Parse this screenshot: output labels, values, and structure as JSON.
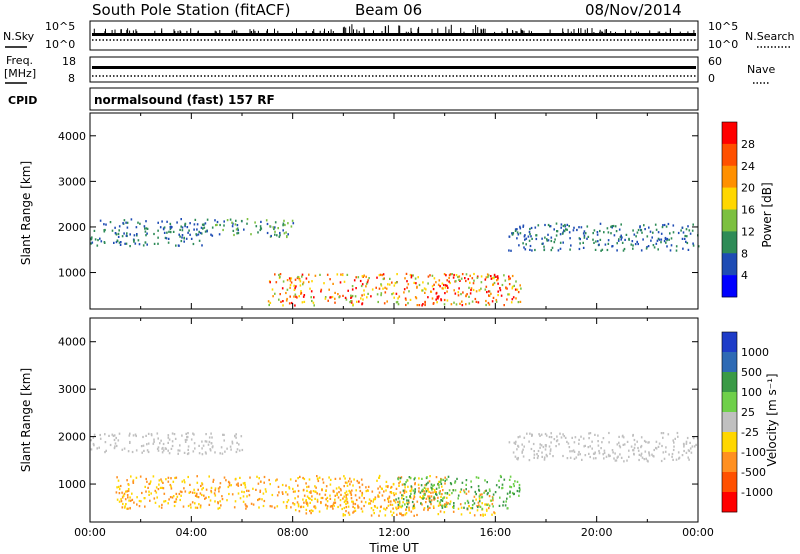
{
  "header": {
    "station": "South Pole Station (fitACF)",
    "beam": "Beam 06",
    "date": "08/Nov/2014"
  },
  "noise_panel": {
    "left_label": "N.Sky",
    "right_label": "N.Search",
    "ticks_left": [
      "10^5",
      "10^0"
    ],
    "ticks_right": [
      "10^5",
      "10^0"
    ]
  },
  "freq_panel": {
    "left_label_line1": "Freq.",
    "left_label_line2": "[MHz]",
    "right_label": "Nave",
    "ticks_left": [
      "18",
      "8"
    ],
    "ticks_right": [
      "60",
      "0"
    ]
  },
  "cpid_panel": {
    "label": "CPID",
    "text": "normalsound (fast) 157 RF"
  },
  "chart_data": [
    {
      "type": "heatmap",
      "title": "",
      "xlabel": "",
      "ylabel": "Slant Range [km]",
      "xlim": [
        0,
        24
      ],
      "ylim": [
        200,
        4500
      ],
      "yticks": [
        1000,
        2000,
        3000,
        4000
      ],
      "colorbar": {
        "label": "Power [dB]",
        "ticks": [
          "28",
          "24",
          "20",
          "16",
          "12",
          "8",
          "4"
        ],
        "colors": [
          "#0000ff",
          "#1e4cb4",
          "#2e8b57",
          "#7cc040",
          "#ffd700",
          "#ff9000",
          "#ff5000",
          "#ff0000"
        ]
      },
      "bands": [
        {
          "t": [
            0,
            4.5
          ],
          "range": [
            1600,
            2200
          ],
          "level": "8-12"
        },
        {
          "t": [
            4.5,
            8
          ],
          "range": [
            1800,
            2200
          ],
          "level": "8-16"
        },
        {
          "t": [
            16.5,
            24
          ],
          "range": [
            1500,
            2100
          ],
          "level": "8-12"
        },
        {
          "t": [
            7,
            17
          ],
          "range": [
            300,
            1000
          ],
          "level": "16-28"
        },
        {
          "t": [
            13.5,
            14
          ],
          "range": [
            300,
            600
          ],
          "level": "28"
        },
        {
          "t": [
            15.8,
            16.2
          ],
          "range": [
            600,
            1000
          ],
          "level": "28"
        }
      ]
    },
    {
      "type": "heatmap",
      "title": "",
      "xlabel": "Time UT",
      "ylabel": "Slant Range [km]",
      "xlim": [
        0,
        24
      ],
      "ylim": [
        200,
        4500
      ],
      "yticks": [
        1000,
        2000,
        3000,
        4000
      ],
      "xticks": [
        "00:00",
        "04:00",
        "08:00",
        "12:00",
        "16:00",
        "20:00",
        "00:00"
      ],
      "colorbar": {
        "label": "Velocity [m s⁻¹]",
        "ticks": [
          "1000",
          "500",
          "100",
          "25",
          "-25",
          "-100",
          "-500",
          "-1000"
        ],
        "colors": [
          "#1e3cc8",
          "#2e6ab4",
          "#3a9a46",
          "#6fd04a",
          "#c0c0c0",
          "#ffd700",
          "#ff9020",
          "#ff5000",
          "#ff0000"
        ]
      },
      "bands": [
        {
          "t": [
            0,
            6
          ],
          "range": [
            1650,
            2100
          ],
          "level": "-25..25"
        },
        {
          "t": [
            16.5,
            24
          ],
          "range": [
            1500,
            2100
          ],
          "level": "-25..25"
        },
        {
          "t": [
            1,
            14
          ],
          "range": [
            500,
            1200
          ],
          "level": "-100..-500"
        },
        {
          "t": [
            8,
            16
          ],
          "range": [
            350,
            900
          ],
          "level": "-100..-500"
        },
        {
          "t": [
            12,
            17
          ],
          "range": [
            500,
            1200
          ],
          "level": "25..500"
        }
      ]
    }
  ]
}
